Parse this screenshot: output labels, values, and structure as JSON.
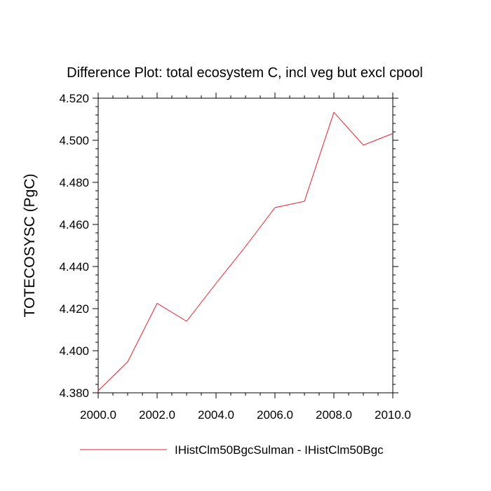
{
  "chart_data": {
    "type": "line",
    "title": "Difference Plot: total ecosystem C, incl veg but excl cpool",
    "xlabel": "",
    "ylabel": "TOTECOSYSC  (PgC)",
    "xlim": [
      2000.0,
      2010.0
    ],
    "ylim": [
      4.38,
      4.52
    ],
    "x_ticks": [
      "2000.0",
      "2002.0",
      "2004.0",
      "2006.0",
      "2008.0",
      "2010.0"
    ],
    "y_ticks": [
      "4.380",
      "4.400",
      "4.420",
      "4.440",
      "4.460",
      "4.480",
      "4.500",
      "4.520"
    ],
    "grid": false,
    "legend_position": "bottom",
    "series": [
      {
        "name": "IHistClm50BgcSulman - IHistClm50Bgc",
        "color": "#e8202a",
        "x": [
          2000,
          2001,
          2002,
          2003,
          2004,
          2005,
          2006,
          2007,
          2008,
          2009,
          2010
        ],
        "values": [
          4.381,
          4.3947,
          4.4225,
          4.414,
          4.432,
          4.4495,
          4.468,
          4.471,
          4.5133,
          4.4977,
          4.5032
        ]
      }
    ]
  }
}
